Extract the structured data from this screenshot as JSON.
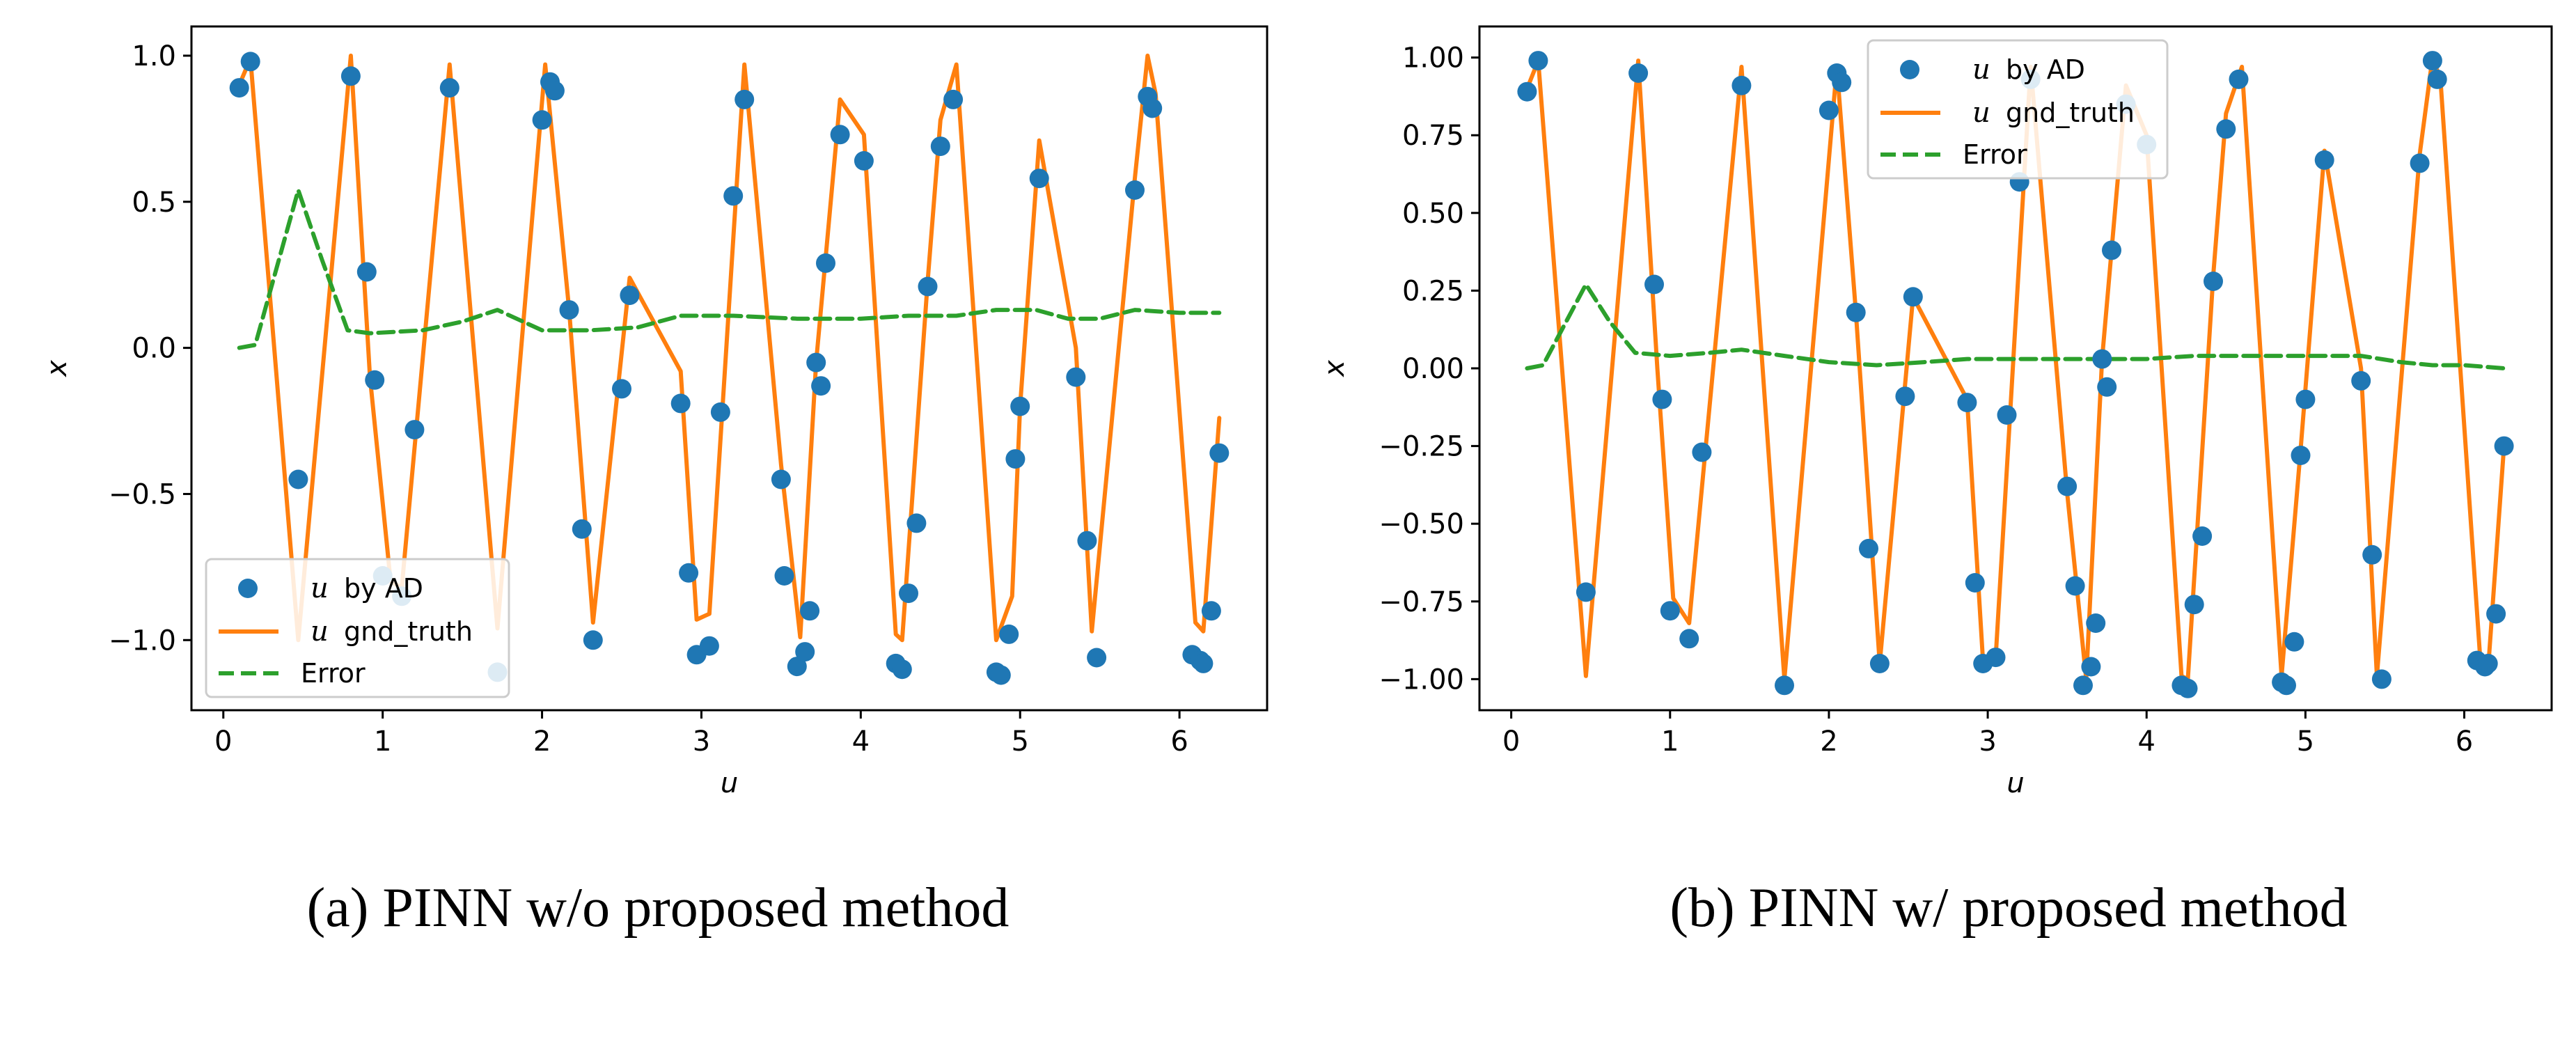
{
  "chart_data": [
    {
      "type": "line",
      "caption": "(a) PINN w/o proposed method",
      "xlabel": "u",
      "ylabel": "x",
      "xlim": [
        -0.2,
        6.55
      ],
      "ylim": [
        -1.24,
        1.1
      ],
      "xticks": [
        0,
        1,
        2,
        3,
        4,
        5,
        6
      ],
      "xtick_labels": [
        "0",
        "1",
        "2",
        "3",
        "4",
        "5",
        "6"
      ],
      "yticks": [
        -1.0,
        -0.5,
        0.0,
        0.5,
        1.0
      ],
      "ytick_labels": [
        "−1.0",
        "−0.5",
        "0.0",
        "0.5",
        "1.0"
      ],
      "grid": false,
      "legend_position": "lower-left",
      "legend": [
        {
          "symbol": "u",
          "label": "by AD"
        },
        {
          "symbol": "u",
          "label": "gnd_truth"
        },
        {
          "symbol": "",
          "label": "Error"
        }
      ],
      "series": [
        {
          "kind": "scatter",
          "color": "#1f77b4",
          "points": [
            [
              0.1,
              0.89
            ],
            [
              0.17,
              0.98
            ],
            [
              0.47,
              -0.45
            ],
            [
              0.8,
              0.93
            ],
            [
              0.9,
              0.26
            ],
            [
              0.95,
              -0.11
            ],
            [
              1.0,
              -0.78
            ],
            [
              1.12,
              -0.85
            ],
            [
              1.2,
              -0.28
            ],
            [
              1.42,
              0.89
            ],
            [
              1.72,
              -1.11
            ],
            [
              2.0,
              0.78
            ],
            [
              2.05,
              0.91
            ],
            [
              2.08,
              0.88
            ],
            [
              2.17,
              0.13
            ],
            [
              2.25,
              -0.62
            ],
            [
              2.32,
              -1.0
            ],
            [
              2.5,
              -0.14
            ],
            [
              2.55,
              0.18
            ],
            [
              2.87,
              -0.19
            ],
            [
              2.92,
              -0.77
            ],
            [
              2.97,
              -1.05
            ],
            [
              3.05,
              -1.02
            ],
            [
              3.12,
              -0.22
            ],
            [
              3.2,
              0.52
            ],
            [
              3.27,
              0.85
            ],
            [
              3.5,
              -0.45
            ],
            [
              3.52,
              -0.78
            ],
            [
              3.6,
              -1.09
            ],
            [
              3.65,
              -1.04
            ],
            [
              3.68,
              -0.9
            ],
            [
              3.72,
              -0.05
            ],
            [
              3.75,
              -0.13
            ],
            [
              3.78,
              0.29
            ],
            [
              3.87,
              0.73
            ],
            [
              4.02,
              0.64
            ],
            [
              4.22,
              -1.08
            ],
            [
              4.26,
              -1.1
            ],
            [
              4.3,
              -0.84
            ],
            [
              4.35,
              -0.6
            ],
            [
              4.42,
              0.21
            ],
            [
              4.5,
              0.69
            ],
            [
              4.58,
              0.85
            ],
            [
              4.85,
              -1.11
            ],
            [
              4.88,
              -1.12
            ],
            [
              4.93,
              -0.98
            ],
            [
              4.97,
              -0.38
            ],
            [
              5.0,
              -0.2
            ],
            [
              5.12,
              0.58
            ],
            [
              5.35,
              -0.1
            ],
            [
              5.42,
              -0.66
            ],
            [
              5.48,
              -1.06
            ],
            [
              5.72,
              0.54
            ],
            [
              5.8,
              0.86
            ],
            [
              5.83,
              0.82
            ],
            [
              6.08,
              -1.05
            ],
            [
              6.13,
              -1.07
            ],
            [
              6.15,
              -1.08
            ],
            [
              6.2,
              -0.9
            ],
            [
              6.25,
              -0.36
            ]
          ]
        },
        {
          "kind": "line",
          "color": "#ff7f0e",
          "dash": "solid",
          "points": [
            [
              0.1,
              0.9
            ],
            [
              0.17,
              0.99
            ],
            [
              0.47,
              -1.0
            ],
            [
              0.8,
              1.0
            ],
            [
              0.92,
              -0.1
            ],
            [
              1.05,
              -0.8
            ],
            [
              1.12,
              -0.82
            ],
            [
              1.42,
              0.97
            ],
            [
              1.72,
              -0.96
            ],
            [
              2.02,
              0.97
            ],
            [
              2.17,
              0.13
            ],
            [
              2.32,
              -0.94
            ],
            [
              2.55,
              0.24
            ],
            [
              2.87,
              -0.08
            ],
            [
              2.97,
              -0.93
            ],
            [
              3.05,
              -0.91
            ],
            [
              3.27,
              0.97
            ],
            [
              3.5,
              -0.4
            ],
            [
              3.62,
              -0.99
            ],
            [
              3.72,
              -0.05
            ],
            [
              3.87,
              0.85
            ],
            [
              4.02,
              0.73
            ],
            [
              4.22,
              -0.98
            ],
            [
              4.26,
              -1.0
            ],
            [
              4.42,
              0.23
            ],
            [
              4.5,
              0.78
            ],
            [
              4.6,
              0.97
            ],
            [
              4.85,
              -1.0
            ],
            [
              4.95,
              -0.85
            ],
            [
              5.0,
              -0.2
            ],
            [
              5.12,
              0.71
            ],
            [
              5.35,
              0.0
            ],
            [
              5.45,
              -0.97
            ],
            [
              5.72,
              0.58
            ],
            [
              5.8,
              1.0
            ],
            [
              5.85,
              0.87
            ],
            [
              6.1,
              -0.94
            ],
            [
              6.15,
              -0.97
            ],
            [
              6.25,
              -0.24
            ]
          ]
        },
        {
          "kind": "line",
          "color": "#2ca02c",
          "dash": "dashed",
          "points": [
            [
              0.1,
              0.0
            ],
            [
              0.2,
              0.01
            ],
            [
              0.47,
              0.54
            ],
            [
              0.62,
              0.3
            ],
            [
              0.78,
              0.06
            ],
            [
              0.92,
              0.05
            ],
            [
              1.25,
              0.06
            ],
            [
              1.5,
              0.09
            ],
            [
              1.72,
              0.13
            ],
            [
              2.0,
              0.06
            ],
            [
              2.3,
              0.06
            ],
            [
              2.6,
              0.07
            ],
            [
              2.87,
              0.11
            ],
            [
              3.2,
              0.11
            ],
            [
              3.6,
              0.1
            ],
            [
              4.0,
              0.1
            ],
            [
              4.3,
              0.11
            ],
            [
              4.6,
              0.11
            ],
            [
              4.85,
              0.13
            ],
            [
              5.1,
              0.13
            ],
            [
              5.3,
              0.1
            ],
            [
              5.5,
              0.1
            ],
            [
              5.72,
              0.13
            ],
            [
              6.0,
              0.12
            ],
            [
              6.25,
              0.12
            ]
          ]
        }
      ]
    },
    {
      "type": "line",
      "caption": "(b) PINN w/ proposed method",
      "xlabel": "u",
      "ylabel": "x",
      "xlim": [
        -0.2,
        6.55
      ],
      "ylim": [
        -1.1,
        1.1
      ],
      "xticks": [
        0,
        1,
        2,
        3,
        4,
        5,
        6
      ],
      "xtick_labels": [
        "0",
        "1",
        "2",
        "3",
        "4",
        "5",
        "6"
      ],
      "yticks": [
        -1.0,
        -0.75,
        -0.5,
        -0.25,
        0.0,
        0.25,
        0.5,
        0.75,
        1.0
      ],
      "ytick_labels": [
        "−1.00",
        "−0.75",
        "−0.50",
        "−0.25",
        "0.00",
        "0.25",
        "0.50",
        "0.75",
        "1.00"
      ],
      "grid": false,
      "legend_position": "top-center",
      "legend": [
        {
          "symbol": "u",
          "label": "by AD"
        },
        {
          "symbol": "u",
          "label": "gnd_truth"
        },
        {
          "symbol": "",
          "label": "Error"
        }
      ],
      "series": [
        {
          "kind": "scatter",
          "color": "#1f77b4",
          "points": [
            [
              0.1,
              0.89
            ],
            [
              0.17,
              0.99
            ],
            [
              0.47,
              -0.72
            ],
            [
              0.8,
              0.95
            ],
            [
              0.9,
              0.27
            ],
            [
              0.95,
              -0.1
            ],
            [
              1.0,
              -0.78
            ],
            [
              1.12,
              -0.87
            ],
            [
              1.2,
              -0.27
            ],
            [
              1.45,
              0.91
            ],
            [
              1.72,
              -1.02
            ],
            [
              2.0,
              0.83
            ],
            [
              2.05,
              0.95
            ],
            [
              2.08,
              0.92
            ],
            [
              2.17,
              0.18
            ],
            [
              2.25,
              -0.58
            ],
            [
              2.32,
              -0.95
            ],
            [
              2.48,
              -0.09
            ],
            [
              2.53,
              0.23
            ],
            [
              2.87,
              -0.11
            ],
            [
              2.92,
              -0.69
            ],
            [
              2.97,
              -0.95
            ],
            [
              3.05,
              -0.93
            ],
            [
              3.12,
              -0.15
            ],
            [
              3.2,
              0.6
            ],
            [
              3.27,
              0.93
            ],
            [
              3.5,
              -0.38
            ],
            [
              3.55,
              -0.7
            ],
            [
              3.6,
              -1.02
            ],
            [
              3.65,
              -0.96
            ],
            [
              3.68,
              -0.82
            ],
            [
              3.72,
              0.03
            ],
            [
              3.75,
              -0.06
            ],
            [
              3.78,
              0.38
            ],
            [
              3.87,
              0.85
            ],
            [
              4.0,
              0.72
            ],
            [
              4.22,
              -1.02
            ],
            [
              4.26,
              -1.03
            ],
            [
              4.3,
              -0.76
            ],
            [
              4.35,
              -0.54
            ],
            [
              4.42,
              0.28
            ],
            [
              4.5,
              0.77
            ],
            [
              4.58,
              0.93
            ],
            [
              4.85,
              -1.01
            ],
            [
              4.88,
              -1.02
            ],
            [
              4.93,
              -0.88
            ],
            [
              4.97,
              -0.28
            ],
            [
              5.0,
              -0.1
            ],
            [
              5.12,
              0.67
            ],
            [
              5.35,
              -0.04
            ],
            [
              5.42,
              -0.6
            ],
            [
              5.48,
              -1.0
            ],
            [
              5.72,
              0.66
            ],
            [
              5.8,
              0.99
            ],
            [
              5.83,
              0.93
            ],
            [
              6.08,
              -0.94
            ],
            [
              6.13,
              -0.96
            ],
            [
              6.15,
              -0.95
            ],
            [
              6.2,
              -0.79
            ],
            [
              6.25,
              -0.25
            ]
          ]
        },
        {
          "kind": "line",
          "color": "#ff7f0e",
          "dash": "solid",
          "points": [
            [
              0.1,
              0.9
            ],
            [
              0.17,
              0.99
            ],
            [
              0.47,
              -0.99
            ],
            [
              0.8,
              0.99
            ],
            [
              0.92,
              0.0
            ],
            [
              1.02,
              -0.74
            ],
            [
              1.12,
              -0.82
            ],
            [
              1.45,
              0.97
            ],
            [
              1.72,
              -1.0
            ],
            [
              2.05,
              0.97
            ],
            [
              2.17,
              0.18
            ],
            [
              2.32,
              -0.95
            ],
            [
              2.53,
              0.23
            ],
            [
              2.87,
              -0.1
            ],
            [
              2.97,
              -0.94
            ],
            [
              3.05,
              -0.93
            ],
            [
              3.27,
              0.97
            ],
            [
              3.5,
              -0.4
            ],
            [
              3.62,
              -1.0
            ],
            [
              3.72,
              0.03
            ],
            [
              3.87,
              0.91
            ],
            [
              4.0,
              0.75
            ],
            [
              4.22,
              -0.99
            ],
            [
              4.26,
              -1.0
            ],
            [
              4.42,
              0.3
            ],
            [
              4.5,
              0.82
            ],
            [
              4.6,
              0.97
            ],
            [
              4.85,
              -0.99
            ],
            [
              4.97,
              -0.26
            ],
            [
              5.12,
              0.7
            ],
            [
              5.35,
              0.0
            ],
            [
              5.45,
              -0.99
            ],
            [
              5.72,
              0.69
            ],
            [
              5.8,
              1.0
            ],
            [
              5.85,
              0.93
            ],
            [
              6.1,
              -0.93
            ],
            [
              6.15,
              -0.97
            ],
            [
              6.25,
              -0.25
            ]
          ]
        },
        {
          "kind": "line",
          "color": "#2ca02c",
          "dash": "dashed",
          "points": [
            [
              0.1,
              0.0
            ],
            [
              0.2,
              0.01
            ],
            [
              0.47,
              0.27
            ],
            [
              0.62,
              0.15
            ],
            [
              0.78,
              0.05
            ],
            [
              1.0,
              0.04
            ],
            [
              1.25,
              0.05
            ],
            [
              1.45,
              0.06
            ],
            [
              1.72,
              0.04
            ],
            [
              2.0,
              0.02
            ],
            [
              2.3,
              0.01
            ],
            [
              2.6,
              0.02
            ],
            [
              2.87,
              0.03
            ],
            [
              3.2,
              0.03
            ],
            [
              3.6,
              0.03
            ],
            [
              4.0,
              0.03
            ],
            [
              4.3,
              0.04
            ],
            [
              4.6,
              0.04
            ],
            [
              4.85,
              0.04
            ],
            [
              5.1,
              0.04
            ],
            [
              5.35,
              0.04
            ],
            [
              5.6,
              0.02
            ],
            [
              5.8,
              0.01
            ],
            [
              6.0,
              0.01
            ],
            [
              6.25,
              0.0
            ]
          ]
        }
      ]
    }
  ]
}
